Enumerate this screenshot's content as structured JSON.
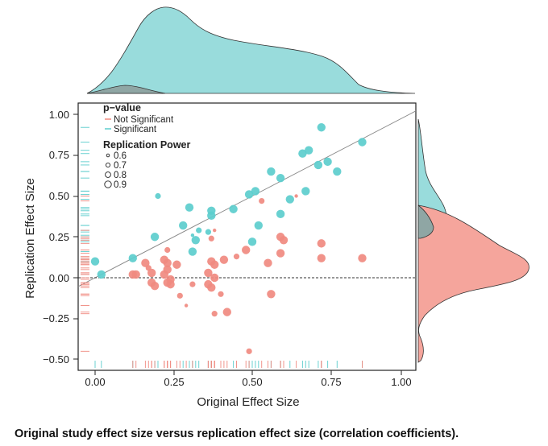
{
  "caption": "Original study effect size versus replication effect size (correlation coefficients).",
  "chart_data": {
    "type": "scatter",
    "xlabel": "Original Effect Size",
    "ylabel": "Replication Effect Size",
    "xlim": [
      -0.05,
      1.05
    ],
    "ylim": [
      -0.55,
      1.05
    ],
    "x_ticks": [
      "0.00",
      "0.25",
      "0.50",
      "0.75",
      "1.00"
    ],
    "y_ticks": [
      "1.00",
      "0.75",
      "0.50",
      "0.25",
      "0.00",
      "−0.25",
      "−0.50"
    ],
    "diagonal_line": true,
    "zero_line": true,
    "marginal_densities": true,
    "rugs": true,
    "colors": {
      "not_significant": "#f08a80",
      "significant": "#5ccdcd",
      "density_significant": "#99dcdc",
      "density_not_significant": "#f5a59c",
      "overlap": "#8fa6a4"
    },
    "legend": {
      "color_title": "p−value",
      "color_items": [
        "Not Significant",
        "Significant"
      ],
      "size_title": "Replication Power",
      "size_items": [
        "0.6",
        "0.7",
        "0.8",
        "0.9"
      ],
      "placement": "top-left"
    },
    "series": [
      {
        "name": "Significant",
        "points": [
          {
            "x": 0.72,
            "y": 0.92,
            "power": 0.8
          },
          {
            "x": 0.85,
            "y": 0.83,
            "power": 0.8
          },
          {
            "x": 0.68,
            "y": 0.78,
            "power": 0.8
          },
          {
            "x": 0.66,
            "y": 0.76,
            "power": 0.8
          },
          {
            "x": 0.74,
            "y": 0.71,
            "power": 0.8
          },
          {
            "x": 0.71,
            "y": 0.69,
            "power": 0.8
          },
          {
            "x": 0.77,
            "y": 0.65,
            "power": 0.8
          },
          {
            "x": 0.56,
            "y": 0.65,
            "power": 0.8
          },
          {
            "x": 0.59,
            "y": 0.61,
            "power": 0.8
          },
          {
            "x": 0.51,
            "y": 0.53,
            "power": 0.8
          },
          {
            "x": 0.49,
            "y": 0.51,
            "power": 0.8
          },
          {
            "x": 0.67,
            "y": 0.53,
            "power": 0.8
          },
          {
            "x": 0.62,
            "y": 0.48,
            "power": 0.8
          },
          {
            "x": 0.2,
            "y": 0.5,
            "power": 0.7
          },
          {
            "x": 0.3,
            "y": 0.43,
            "power": 0.8
          },
          {
            "x": 0.37,
            "y": 0.41,
            "power": 0.8
          },
          {
            "x": 0.37,
            "y": 0.38,
            "power": 0.8
          },
          {
            "x": 0.44,
            "y": 0.42,
            "power": 0.8
          },
          {
            "x": 0.59,
            "y": 0.39,
            "power": 0.8
          },
          {
            "x": 0.28,
            "y": 0.32,
            "power": 0.8
          },
          {
            "x": 0.52,
            "y": 0.32,
            "power": 0.8
          },
          {
            "x": 0.33,
            "y": 0.29,
            "power": 0.7
          },
          {
            "x": 0.36,
            "y": 0.28,
            "power": 0.7
          },
          {
            "x": 0.31,
            "y": 0.26,
            "power": 0.6
          },
          {
            "x": 0.19,
            "y": 0.25,
            "power": 0.8
          },
          {
            "x": 0.32,
            "y": 0.23,
            "power": 0.8
          },
          {
            "x": 0.5,
            "y": 0.22,
            "power": 0.8
          },
          {
            "x": 0.31,
            "y": 0.16,
            "power": 0.8
          },
          {
            "x": 0.12,
            "y": 0.12,
            "power": 0.8
          },
          {
            "x": 0.0,
            "y": 0.1,
            "power": 0.8
          },
          {
            "x": 0.02,
            "y": 0.02,
            "power": 0.8
          }
        ]
      },
      {
        "name": "Not Significant",
        "points": [
          {
            "x": 0.64,
            "y": 0.5,
            "power": 0.6
          },
          {
            "x": 0.53,
            "y": 0.47,
            "power": 0.7
          },
          {
            "x": 0.38,
            "y": 0.29,
            "power": 0.6
          },
          {
            "x": 0.37,
            "y": 0.24,
            "power": 0.7
          },
          {
            "x": 0.59,
            "y": 0.25,
            "power": 0.8
          },
          {
            "x": 0.6,
            "y": 0.23,
            "power": 0.8
          },
          {
            "x": 0.72,
            "y": 0.21,
            "power": 0.8
          },
          {
            "x": 0.48,
            "y": 0.17,
            "power": 0.8
          },
          {
            "x": 0.59,
            "y": 0.15,
            "power": 0.8
          },
          {
            "x": 0.45,
            "y": 0.13,
            "power": 0.7
          },
          {
            "x": 0.72,
            "y": 0.12,
            "power": 0.8
          },
          {
            "x": 0.85,
            "y": 0.12,
            "power": 0.8
          },
          {
            "x": 0.23,
            "y": 0.17,
            "power": 0.7
          },
          {
            "x": 0.41,
            "y": 0.11,
            "power": 0.8
          },
          {
            "x": 0.37,
            "y": 0.1,
            "power": 0.8
          },
          {
            "x": 0.38,
            "y": 0.08,
            "power": 0.8
          },
          {
            "x": 0.55,
            "y": 0.09,
            "power": 0.8
          },
          {
            "x": 0.22,
            "y": 0.11,
            "power": 0.8
          },
          {
            "x": 0.16,
            "y": 0.09,
            "power": 0.8
          },
          {
            "x": 0.17,
            "y": 0.06,
            "power": 0.7
          },
          {
            "x": 0.23,
            "y": 0.09,
            "power": 0.8
          },
          {
            "x": 0.26,
            "y": 0.08,
            "power": 0.8
          },
          {
            "x": 0.23,
            "y": 0.05,
            "power": 0.8
          },
          {
            "x": 0.18,
            "y": 0.03,
            "power": 0.8
          },
          {
            "x": 0.12,
            "y": 0.02,
            "power": 0.8
          },
          {
            "x": 0.13,
            "y": 0.02,
            "power": 0.8
          },
          {
            "x": 0.22,
            "y": 0.02,
            "power": 0.8
          },
          {
            "x": 0.24,
            "y": -0.01,
            "power": 0.8
          },
          {
            "x": 0.36,
            "y": 0.03,
            "power": 0.8
          },
          {
            "x": 0.38,
            "y": 0.0,
            "power": 0.8
          },
          {
            "x": 0.36,
            "y": -0.04,
            "power": 0.8
          },
          {
            "x": 0.37,
            "y": -0.06,
            "power": 0.8
          },
          {
            "x": 0.18,
            "y": -0.03,
            "power": 0.8
          },
          {
            "x": 0.23,
            "y": -0.03,
            "power": 0.8
          },
          {
            "x": 0.31,
            "y": -0.04,
            "power": 0.7
          },
          {
            "x": 0.19,
            "y": -0.05,
            "power": 0.8
          },
          {
            "x": 0.24,
            "y": -0.04,
            "power": 0.8
          },
          {
            "x": 0.27,
            "y": -0.11,
            "power": 0.7
          },
          {
            "x": 0.4,
            "y": -0.1,
            "power": 0.7
          },
          {
            "x": 0.56,
            "y": -0.1,
            "power": 0.8
          },
          {
            "x": 0.29,
            "y": -0.17,
            "power": 0.6
          },
          {
            "x": 0.38,
            "y": -0.22,
            "power": 0.7
          },
          {
            "x": 0.42,
            "y": -0.21,
            "power": 0.8
          },
          {
            "x": 0.49,
            "y": -0.45,
            "power": 0.7
          }
        ]
      }
    ]
  }
}
